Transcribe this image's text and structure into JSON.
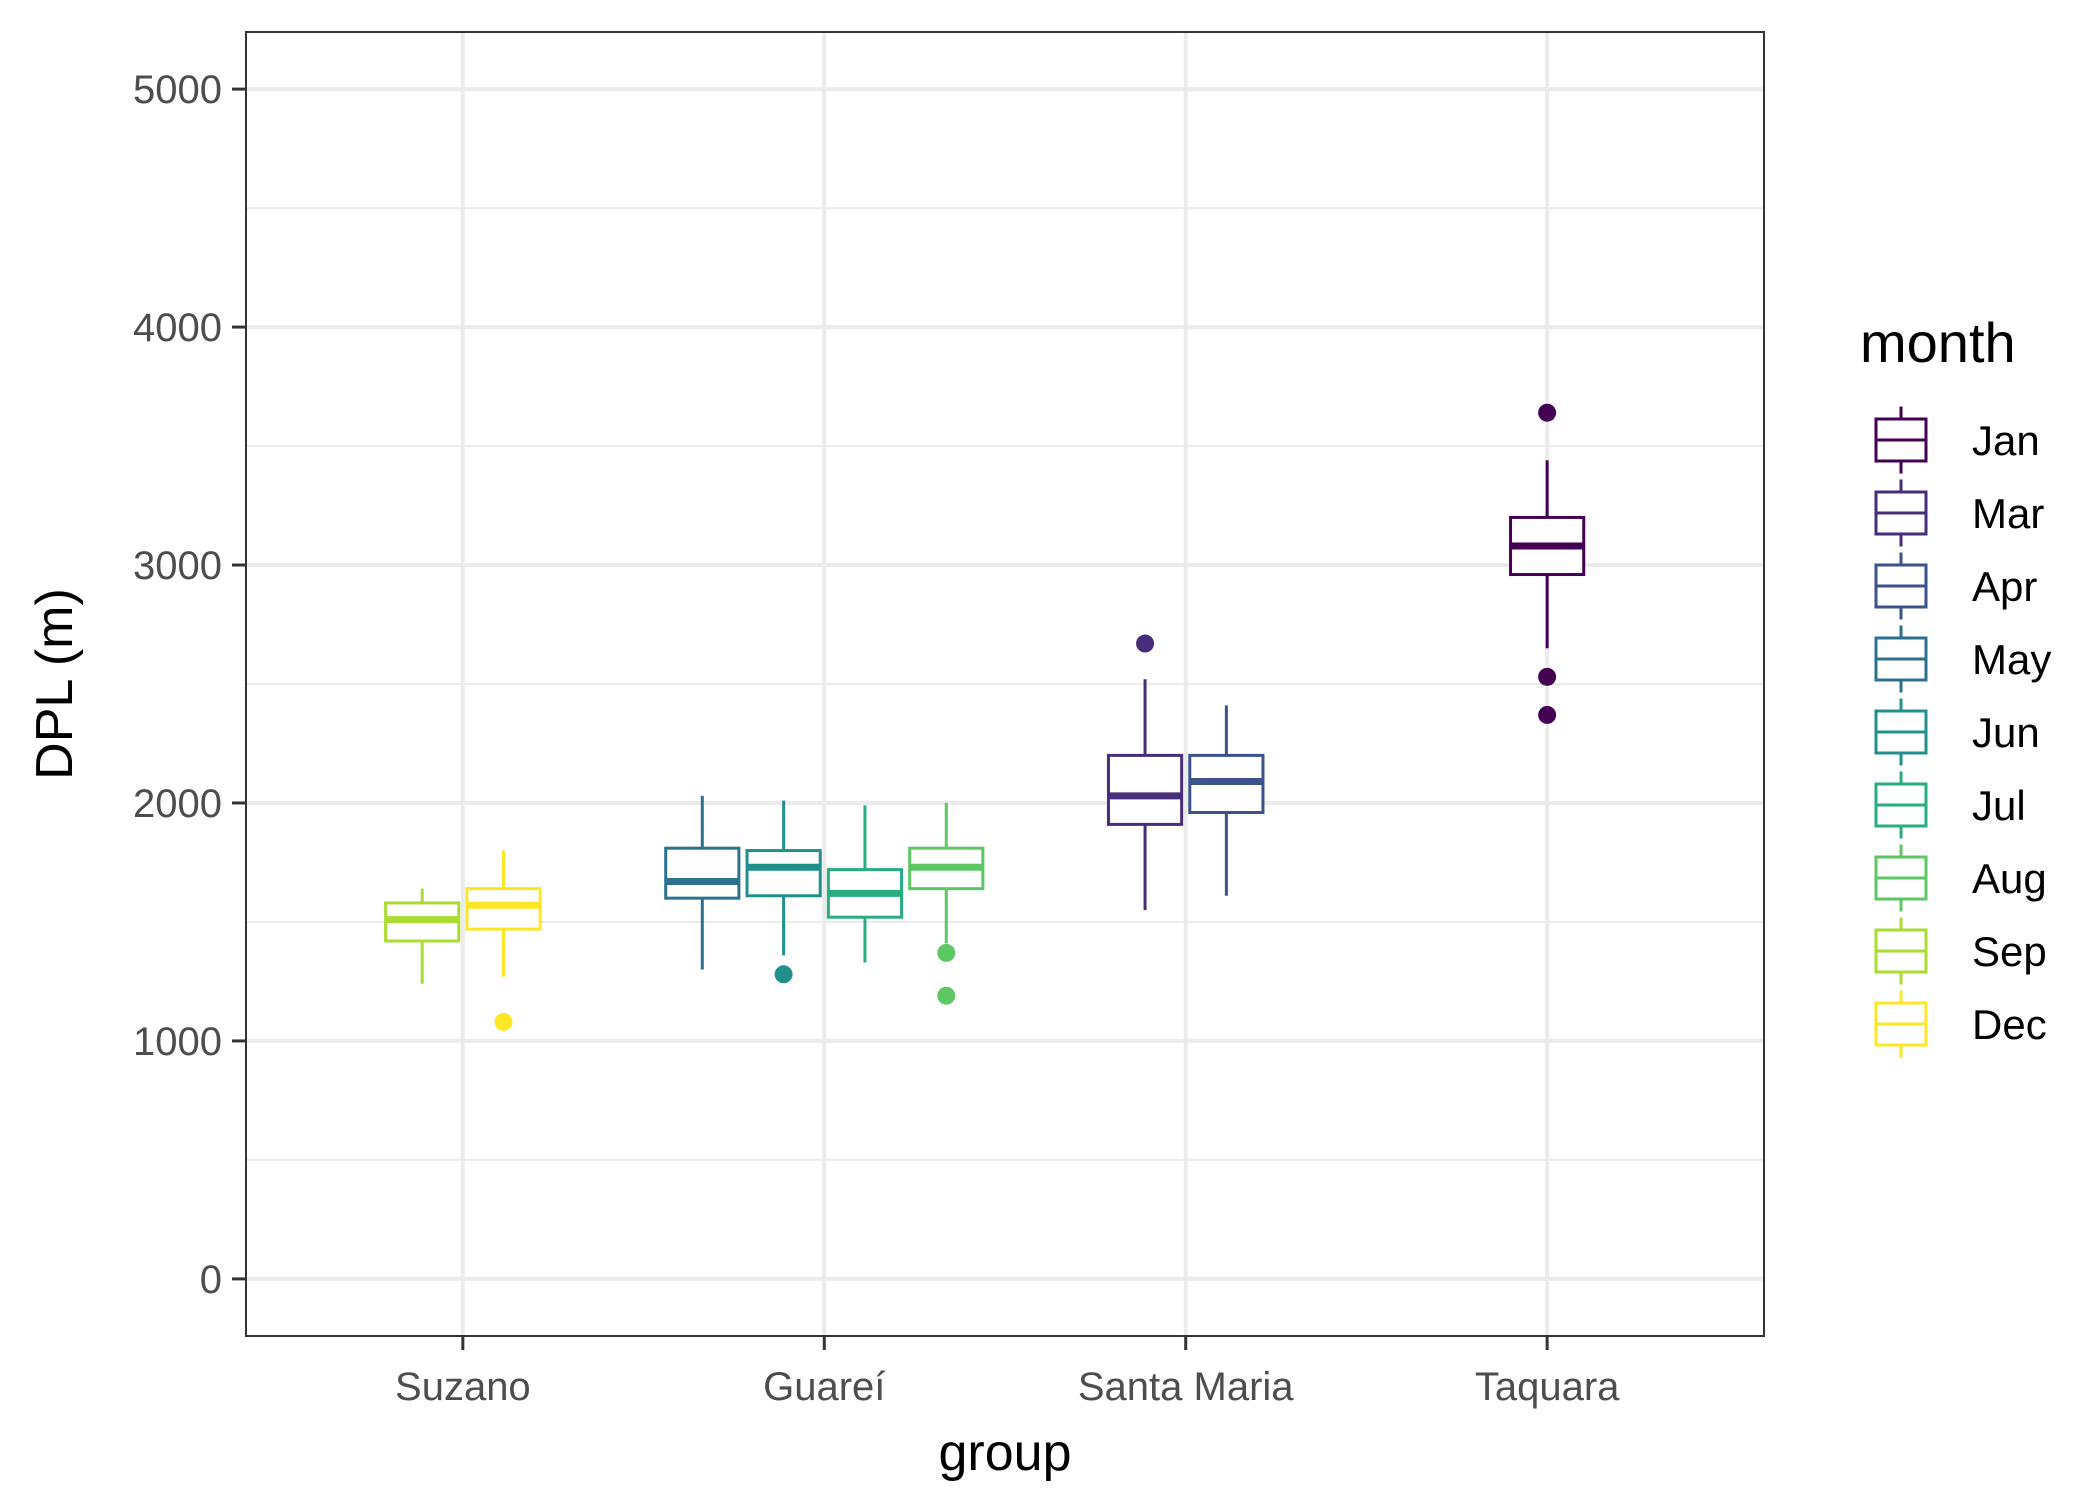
{
  "chart_data": {
    "type": "boxplot",
    "xlabel": "group",
    "ylabel": "DPL (m)",
    "ylim": [
      -240,
      5240
    ],
    "yticks": [
      0,
      1000,
      2000,
      3000,
      4000,
      5000
    ],
    "grid": true,
    "legend": {
      "title": "month",
      "position": "right",
      "entries": [
        "Jan",
        "Mar",
        "Apr",
        "May",
        "Jun",
        "Jul",
        "Aug",
        "Sep",
        "Dec"
      ]
    },
    "colors": {
      "Jan": "#440154",
      "Mar": "#472d7b",
      "Apr": "#3b528b",
      "May": "#2c728e",
      "Jun": "#21908d",
      "Jul": "#27ad81",
      "Aug": "#5dc863",
      "Sep": "#aadc32",
      "Dec": "#fde725"
    },
    "categories": [
      "Suzano",
      "Guareí",
      "Santa Maria",
      "Taquara"
    ],
    "boxes": [
      {
        "group": "Suzano",
        "month": "Sep",
        "whisker_low": 1240,
        "q1": 1420,
        "median": 1510,
        "q3": 1580,
        "whisker_high": 1640,
        "outliers": []
      },
      {
        "group": "Suzano",
        "month": "Dec",
        "whisker_low": 1270,
        "q1": 1470,
        "median": 1570,
        "q3": 1640,
        "whisker_high": 1800,
        "outliers": [
          1080
        ]
      },
      {
        "group": "Guareí",
        "month": "May",
        "whisker_low": 1300,
        "q1": 1600,
        "median": 1670,
        "q3": 1810,
        "whisker_high": 2030,
        "outliers": []
      },
      {
        "group": "Guareí",
        "month": "Jun",
        "whisker_low": 1360,
        "q1": 1610,
        "median": 1730,
        "q3": 1800,
        "whisker_high": 2010,
        "outliers": [
          1280
        ]
      },
      {
        "group": "Guareí",
        "month": "Jul",
        "whisker_low": 1330,
        "q1": 1520,
        "median": 1620,
        "q3": 1720,
        "whisker_high": 1990,
        "outliers": []
      },
      {
        "group": "Guareí",
        "month": "Aug",
        "whisker_low": 1410,
        "q1": 1640,
        "median": 1730,
        "q3": 1810,
        "whisker_high": 2000,
        "outliers": [
          1370,
          1190
        ]
      },
      {
        "group": "Santa Maria",
        "month": "Mar",
        "whisker_low": 1550,
        "q1": 1910,
        "median": 2030,
        "q3": 2200,
        "whisker_high": 2520,
        "outliers": [
          2670
        ]
      },
      {
        "group": "Santa Maria",
        "month": "Apr",
        "whisker_low": 1610,
        "q1": 1960,
        "median": 2090,
        "q3": 2200,
        "whisker_high": 2410,
        "outliers": []
      },
      {
        "group": "Taquara",
        "month": "Jan",
        "whisker_low": 2650,
        "q1": 2960,
        "median": 3080,
        "q3": 3200,
        "whisker_high": 3440,
        "outliers": [
          3640,
          2530,
          2370
        ]
      }
    ]
  }
}
